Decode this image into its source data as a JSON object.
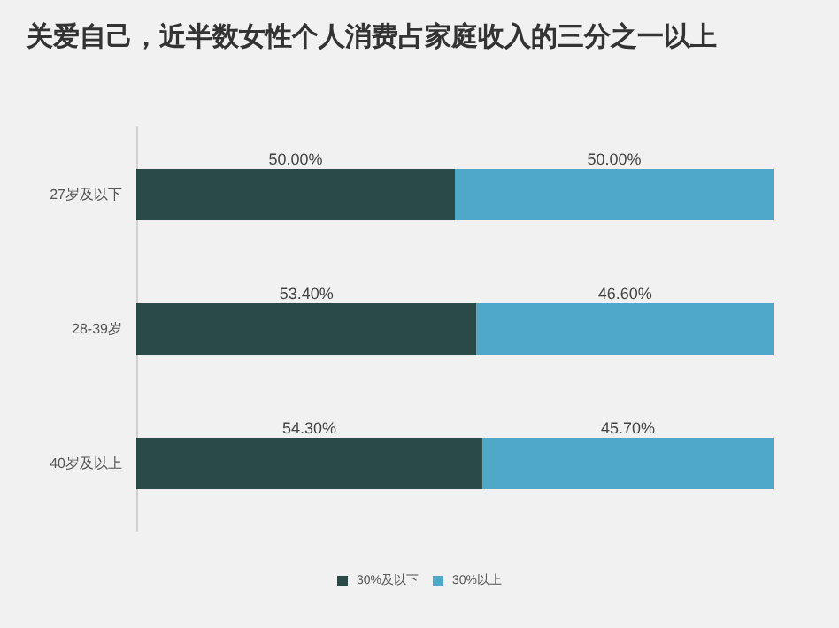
{
  "chart_data": {
    "type": "bar",
    "orientation": "horizontal",
    "stacked": true,
    "title": "关爱自己，近半数女性个人消费占家庭收入的三分之一以上",
    "categories": [
      "27岁及以下",
      "28-39岁",
      "40岁及以上"
    ],
    "series": [
      {
        "name": "30%及以下",
        "color": "#2a4a47",
        "values": [
          50.0,
          53.4,
          54.3
        ],
        "value_labels": [
          "50.00%",
          "53.40%",
          "54.30%"
        ]
      },
      {
        "name": "30%以上",
        "color": "#4fa8c8",
        "values": [
          50.0,
          46.6,
          45.7
        ],
        "value_labels": [
          "50.00%",
          "46.60%",
          "45.70%"
        ]
      }
    ],
    "legend": "bottom",
    "grid": false
  }
}
